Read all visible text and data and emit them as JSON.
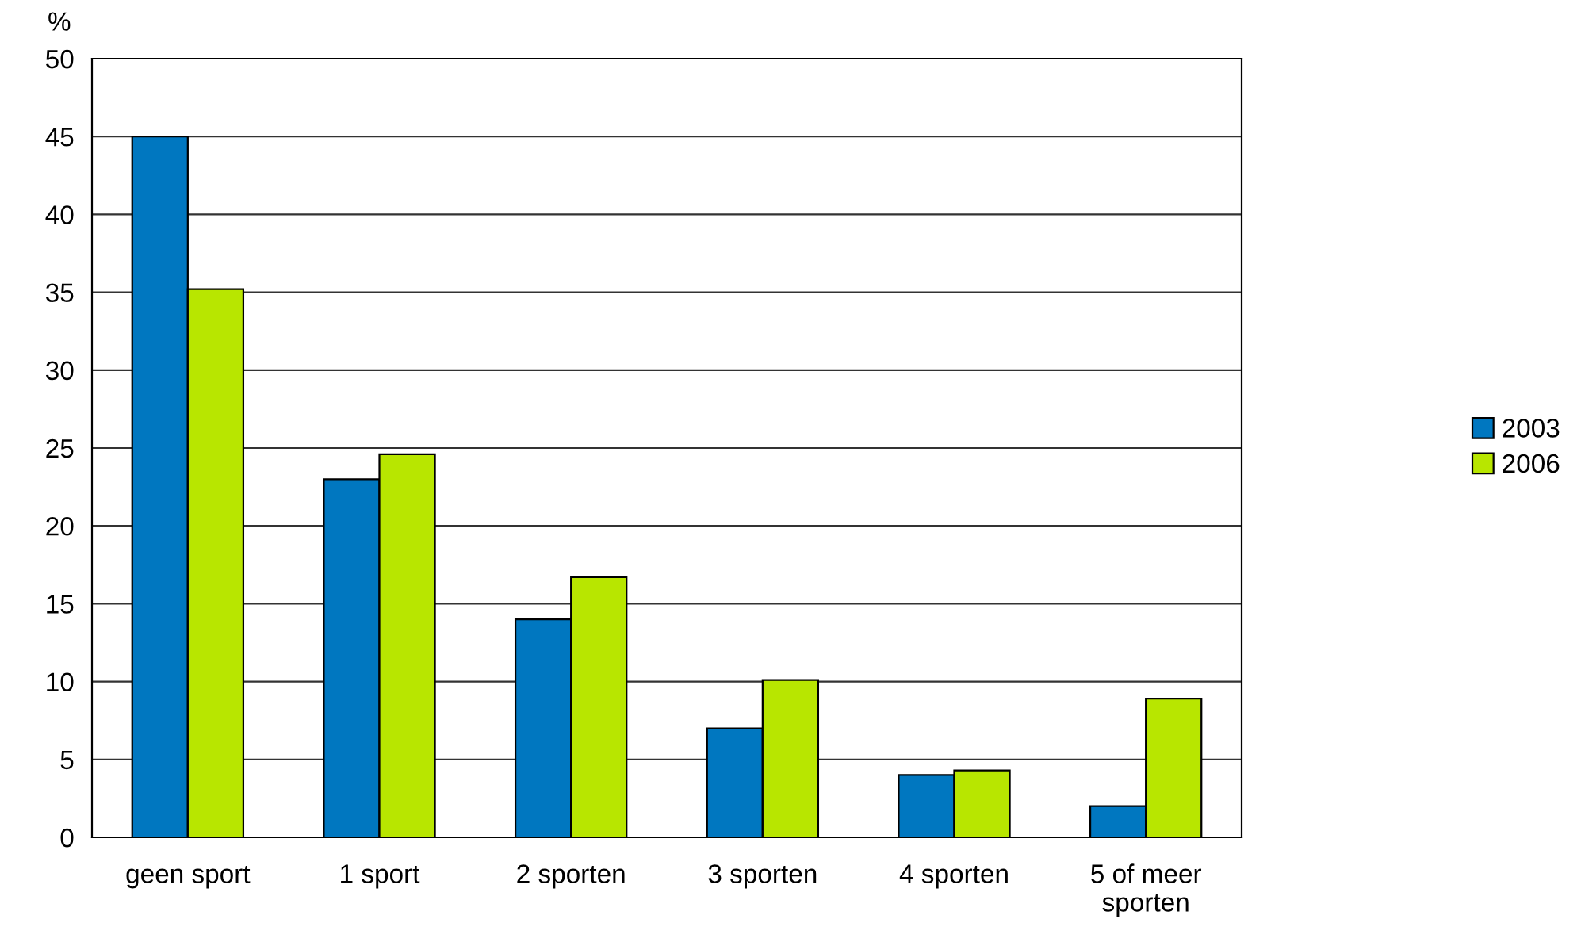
{
  "chart_data": {
    "type": "bar",
    "ylabel": "%",
    "categories": [
      "geen sport",
      "1 sport",
      "2 sporten",
      "3 sporten",
      "4 sporten",
      "5 of meer\nsporten"
    ],
    "series": [
      {
        "name": "2003",
        "color": "#0077c0",
        "values": [
          45,
          23.0,
          14.0,
          7.0,
          4.0,
          2.0
        ]
      },
      {
        "name": "2006",
        "color": "#b8e600",
        "values": [
          35.2,
          24.6,
          16.7,
          10.1,
          4.3,
          8.9
        ]
      }
    ],
    "ylim": [
      0,
      50
    ],
    "yticks": [
      0,
      5,
      10,
      15,
      20,
      25,
      30,
      35,
      40,
      45,
      50
    ],
    "grid": "y",
    "legend": "right"
  }
}
